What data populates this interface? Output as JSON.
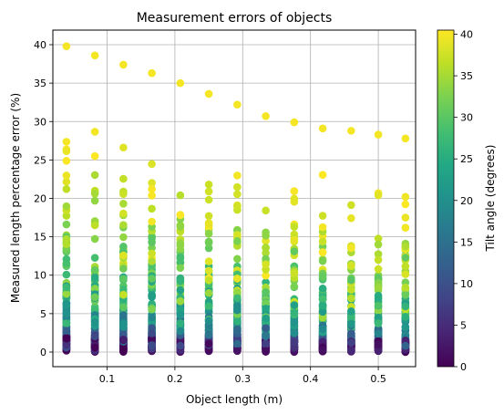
{
  "chart_data": {
    "type": "scatter",
    "title": "Measurement errors of objects",
    "xlabel": "Object length (m)",
    "ylabel": "Measured length percentage error (%)",
    "xlim": [
      0.02,
      0.555
    ],
    "ylim": [
      -1.9,
      41.9
    ],
    "xticks": [
      0.1,
      0.2,
      0.3,
      0.4,
      0.5
    ],
    "xtick_labels": [
      "0.1",
      "0.2",
      "0.3",
      "0.4",
      "0.5"
    ],
    "yticks": [
      0,
      5,
      10,
      15,
      20,
      25,
      30,
      35,
      40
    ],
    "ytick_labels": [
      "0",
      "5",
      "10",
      "15",
      "20",
      "25",
      "30",
      "35",
      "40"
    ],
    "grid": true,
    "colorbar": {
      "label": "Tilt angle (degrees)",
      "colormap": "viridis",
      "range": [
        0,
        40.5
      ],
      "ticks": [
        0,
        5,
        10,
        15,
        20,
        25,
        30,
        35,
        40
      ],
      "tick_labels": [
        "0",
        "5",
        "10",
        "15",
        "20",
        "25",
        "30",
        "35",
        "40"
      ]
    },
    "x_positions": [
      0.04,
      0.082,
      0.124,
      0.166,
      0.208,
      0.25,
      0.292,
      0.334,
      0.376,
      0.418,
      0.46,
      0.5,
      0.54
    ],
    "max_error_per_x": [
      39.8,
      38.6,
      37.4,
      36.3,
      35.0,
      33.6,
      32.2,
      30.7,
      29.9,
      29.1,
      28.8,
      28.3,
      27.8
    ],
    "model": "percentage_error = 100 * (1/cos(tilt) - 1)"
  }
}
